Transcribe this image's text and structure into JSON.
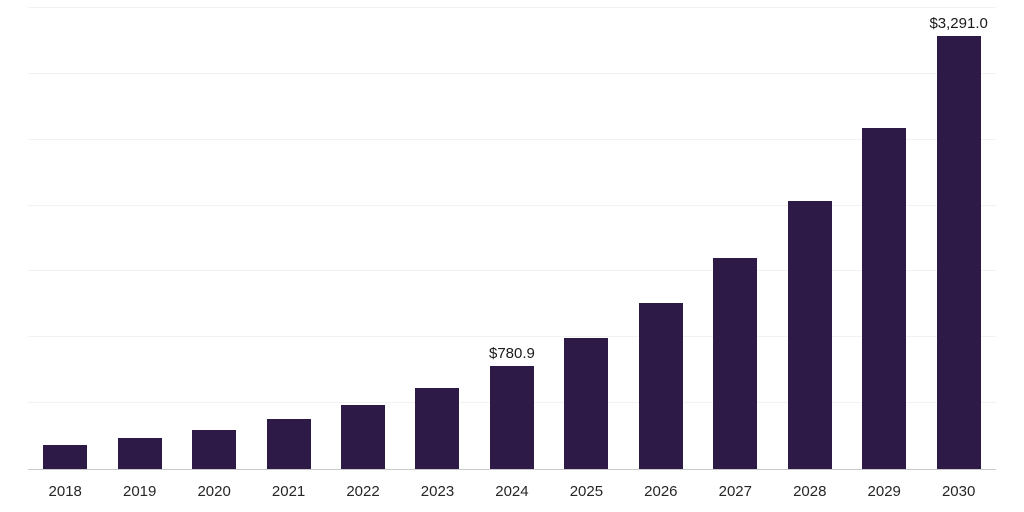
{
  "chart_data": {
    "type": "bar",
    "title": "",
    "xlabel": "",
    "ylabel": "",
    "ylim": [
      0,
      3500
    ],
    "grid": "horizontal-faint",
    "gridline_step": 500,
    "legend": "none",
    "bar_color": "#2E1A47",
    "categories": [
      "2018",
      "2019",
      "2020",
      "2021",
      "2022",
      "2023",
      "2024",
      "2025",
      "2026",
      "2027",
      "2028",
      "2029",
      "2030"
    ],
    "values": [
      185.0,
      235.0,
      299.0,
      380.0,
      483.0,
      614.3,
      780.9,
      992.5,
      1261.5,
      1603.3,
      2037.8,
      2590.0,
      3291.0
    ],
    "data_labels": [
      {
        "category": "2024",
        "text": "$780.9"
      },
      {
        "category": "2030",
        "text": "$3,291.0"
      }
    ]
  }
}
